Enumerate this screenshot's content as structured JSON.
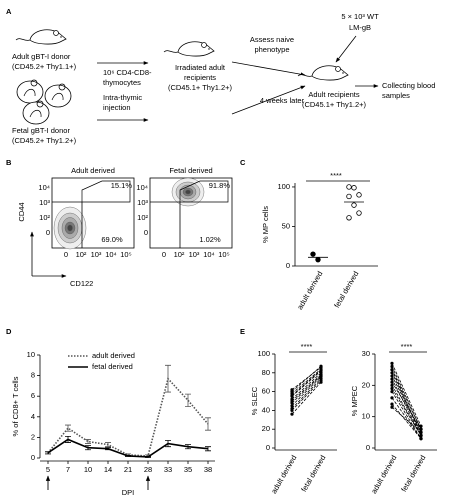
{
  "panel_a": {
    "label": "A",
    "adult_donor": [
      "Adult gBT-I donor",
      "(CD45.2+ Thy1.1+)"
    ],
    "fetal_donor": [
      "Fetal gBT-I donor",
      "(CD45.2+ Thy1.2+)"
    ],
    "injection_cells": [
      "10⁶ CD4-CD8-",
      "thymocytes"
    ],
    "injection": [
      "Intra-thymic",
      "injection"
    ],
    "irradiated": [
      "Irradiated adult",
      "recipients",
      "(CD45.1+ Thy1.2+)"
    ],
    "assess": [
      "Assess naive",
      "phenotype"
    ],
    "interval": "4 weeks later",
    "challenge": [
      "5 × 10³ WT",
      "LM-gB"
    ],
    "adult_recipients": [
      "Adult recipients",
      "(CD45.1+ Thy1.2+)"
    ],
    "collect": [
      "Collecting blood",
      "samples"
    ]
  },
  "panel_b": {
    "label": "B",
    "plots": [
      {
        "title": "Adult derived",
        "gate_upper": "15.1%",
        "gate_lower": "69.0%"
      },
      {
        "title": "Fetal derived",
        "gate_upper": "91.8%",
        "gate_lower": "1.02%"
      }
    ],
    "y_label": "CD44",
    "x_label": "CD122",
    "y_tick_labels": [
      "10⁴",
      "10³",
      "10²",
      "0"
    ],
    "x_tick_labels": [
      "0",
      "10²",
      "10³",
      "10⁴",
      "10⁵"
    ]
  },
  "panel_c_label": "C",
  "panel_d_label": "D",
  "panel_e_label": "E",
  "chart_data": [
    {
      "type": "scatter",
      "categories": [
        "adult derived",
        "fetal derived"
      ],
      "values": [
        [
          15,
          8
        ],
        [
          100,
          99,
          90,
          88,
          77,
          67,
          61
        ]
      ],
      "center_lines": [
        11,
        81
      ],
      "markers": [
        "filled",
        "open"
      ],
      "ylim": [
        0,
        105
      ],
      "yticks": [
        0,
        50,
        100
      ],
      "ylabel": "% MP cells",
      "significance": "****"
    },
    {
      "type": "line",
      "categories": [
        "5",
        "7",
        "10",
        "14",
        "21",
        "28",
        "33",
        "35",
        "38"
      ],
      "series": [
        {
          "name": "adult derived",
          "color": "#555555",
          "dash": "dotted",
          "values": [
            0.5,
            2.9,
            1.6,
            1.3,
            0.3,
            0.2,
            7.7,
            5.6,
            3.3
          ],
          "error": [
            0.1,
            0.3,
            0.2,
            0.2,
            0.1,
            0.1,
            1.3,
            0.6,
            0.6
          ]
        },
        {
          "name": "fetal derived",
          "color": "#000000",
          "dash": "solid",
          "values": [
            0.5,
            1.8,
            1.0,
            0.9,
            0.2,
            0.1,
            1.4,
            1.1,
            0.9
          ],
          "error": [
            0.1,
            0.3,
            0.2,
            0.1,
            0.05,
            0.05,
            0.3,
            0.2,
            0.2
          ]
        }
      ],
      "ylim": [
        0,
        10
      ],
      "yticks": [
        0,
        2,
        4,
        6,
        8,
        10
      ],
      "xlabel": "DPI",
      "ylabel": "% of CD8+ T cells"
    },
    {
      "type": "paired",
      "categories": [
        "adult derived",
        "fetal derived"
      ],
      "values": [
        [
          62,
          86
        ],
        [
          58,
          84
        ],
        [
          55,
          82
        ],
        [
          52,
          80
        ],
        [
          50,
          78
        ],
        [
          48,
          77
        ],
        [
          45,
          76
        ],
        [
          42,
          74
        ],
        [
          40,
          72
        ],
        [
          36,
          70
        ],
        [
          56,
          83
        ],
        [
          60,
          87
        ]
      ],
      "ylim": [
        0,
        100
      ],
      "yticks": [
        0,
        20,
        40,
        60,
        80,
        100
      ],
      "ylabel": "% SLEC",
      "significance": "****"
    },
    {
      "type": "paired",
      "categories": [
        "adult derived",
        "fetal derived"
      ],
      "values": [
        [
          27,
          7
        ],
        [
          26,
          6
        ],
        [
          25,
          6
        ],
        [
          24,
          5
        ],
        [
          23,
          5
        ],
        [
          22,
          4
        ],
        [
          20,
          4
        ],
        [
          19,
          4
        ],
        [
          18,
          3
        ],
        [
          16,
          3
        ],
        [
          14,
          3
        ],
        [
          13,
          5
        ],
        [
          25,
          4
        ],
        [
          21,
          6
        ]
      ],
      "ylim": [
        0,
        30
      ],
      "yticks": [
        0,
        10,
        20,
        30
      ],
      "ylabel": "% MPEC",
      "significance": "****"
    }
  ]
}
